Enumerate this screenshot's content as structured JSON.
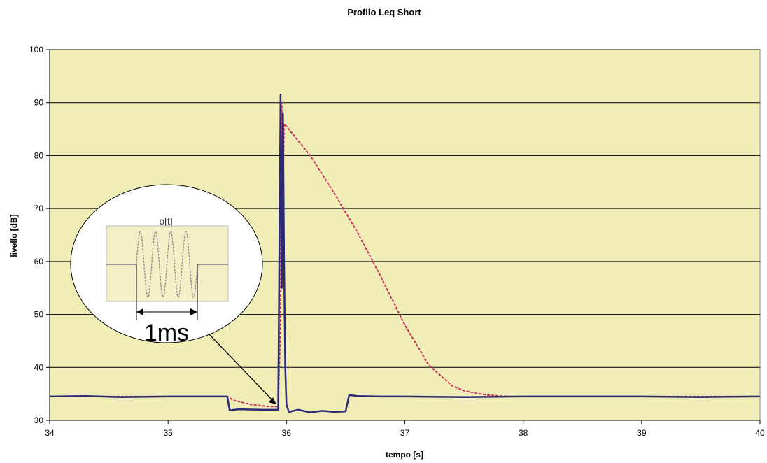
{
  "chart_data": {
    "type": "line",
    "title": "Profilo Leq Short",
    "xlabel": "tempo [s]",
    "ylabel": "livello [dB]",
    "xlim": [
      34,
      40
    ],
    "ylim": [
      30,
      100
    ],
    "x_ticks": [
      "34",
      "35",
      "36",
      "37",
      "38",
      "39",
      "40"
    ],
    "y_ticks": [
      "30",
      "40",
      "50",
      "60",
      "70",
      "80",
      "90",
      "100"
    ],
    "grid": true,
    "plot_background": "#f0eeb6",
    "series": [
      {
        "color": "#c8305e",
        "style": "dashed",
        "x": [
          34.0,
          35.5,
          35.55,
          35.7,
          35.85,
          35.93,
          35.95,
          35.96,
          35.97,
          35.98,
          36.0,
          36.2,
          36.4,
          36.6,
          36.8,
          37.0,
          37.2,
          37.4,
          37.5,
          37.6,
          37.7,
          37.8,
          37.9,
          38.0,
          38.5,
          39.0,
          39.5,
          40.0
        ],
        "y": [
          34.5,
          34.5,
          33.8,
          33.0,
          32.6,
          32.6,
          48.0,
          90.0,
          70.0,
          86.0,
          85.5,
          80.0,
          73.0,
          65.5,
          57.0,
          48.0,
          40.5,
          36.5,
          35.6,
          35.1,
          34.8,
          34.6,
          34.5,
          34.5,
          34.5,
          34.5,
          34.5,
          34.5
        ]
      },
      {
        "color": "#2c2a78",
        "style": "solid",
        "x": [
          34.0,
          34.3,
          34.6,
          35.0,
          35.3,
          35.5,
          35.52,
          35.6,
          35.8,
          35.93,
          35.94,
          35.95,
          35.96,
          35.97,
          35.98,
          35.99,
          36.0,
          36.02,
          36.1,
          36.2,
          36.3,
          36.4,
          36.5,
          36.53,
          36.6,
          36.8,
          37.0,
          37.5,
          38.0,
          38.5,
          39.0,
          39.5,
          40.0
        ],
        "y": [
          34.5,
          34.6,
          34.4,
          34.5,
          34.5,
          34.5,
          31.9,
          32.1,
          32.0,
          32.0,
          62.0,
          91.5,
          55.0,
          88.0,
          60.0,
          40.0,
          33.0,
          31.6,
          32.0,
          31.5,
          31.8,
          31.6,
          31.7,
          34.8,
          34.6,
          34.5,
          34.5,
          34.4,
          34.5,
          34.5,
          34.5,
          34.4,
          34.5
        ]
      }
    ],
    "annotation": {
      "text_top": "p[t]",
      "text_bottom": "1ms",
      "pointer_to": [
        35.95,
        32.5
      ]
    }
  }
}
